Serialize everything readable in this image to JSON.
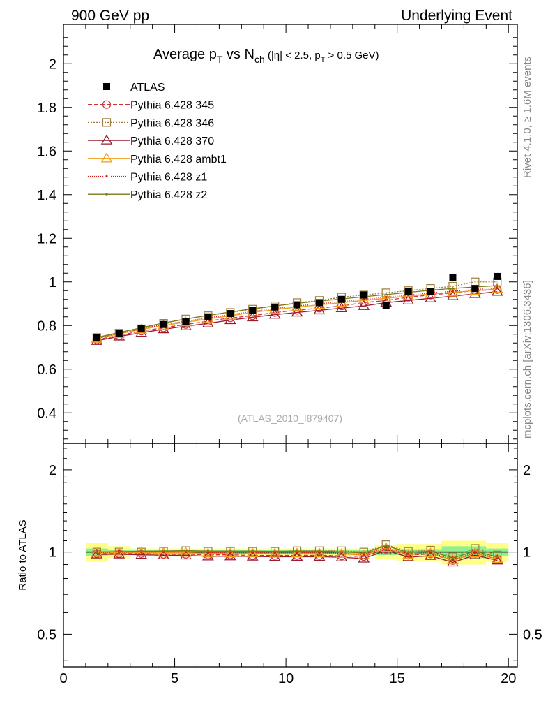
{
  "header": {
    "left": "900 GeV pp",
    "right": "Underlying Event"
  },
  "side": {
    "top": "Rivet 4.1.0, ≥ 1.6M events",
    "bottom": "mcplots.cern.ch [arXiv:1306.3436]"
  },
  "watermark": "(ATLAS_2010_I879407)",
  "chart_data": {
    "type": "line",
    "title": {
      "main": "Average p",
      "main_sub": "T",
      "mid": " vs N",
      "mid_sub": "ch",
      "cut_a": " (|η| < 2.5, p",
      "cut_sub": "T",
      "cut_b": " > 0.5 GeV)"
    },
    "xlabel": "",
    "ylabel": "",
    "ratio_ylabel": "Ratio to ATLAS",
    "xlim": [
      0,
      20.4
    ],
    "ylim": [
      0.26,
      2.18
    ],
    "ratio_ylim": [
      0.38,
      2.5
    ],
    "x_ticks": [
      0,
      5,
      10,
      15,
      20
    ],
    "x_tick_labels": [
      "0",
      "5",
      "10",
      "15",
      "20"
    ],
    "y_ticks": [
      0.4,
      0.6,
      0.8,
      1.0,
      1.2,
      1.4,
      1.6,
      1.8,
      2.0
    ],
    "y_tick_labels": [
      "0.4",
      "0.6",
      "0.8",
      "1",
      "1.2",
      "1.4",
      "1.6",
      "1.8",
      "2"
    ],
    "ratio_ticks": [
      0.5,
      1,
      2
    ],
    "ratio_tick_labels": [
      "0.5",
      "1",
      "2"
    ],
    "x": [
      1.5,
      2.5,
      3.5,
      4.5,
      5.5,
      6.5,
      7.5,
      8.5,
      9.5,
      10.5,
      11.5,
      12.5,
      13.5,
      14.5,
      15.5,
      16.5,
      17.5,
      18.5,
      19.5
    ],
    "data": {
      "name": "ATLAS",
      "values": [
        0.745,
        0.765,
        0.785,
        0.805,
        0.82,
        0.84,
        0.855,
        0.87,
        0.885,
        0.895,
        0.905,
        0.92,
        0.94,
        0.893,
        0.955,
        0.955,
        1.02,
        0.97,
        1.025
      ],
      "band_inner": [
        0.03,
        0.02,
        0.015,
        0.015,
        0.015,
        0.015,
        0.015,
        0.015,
        0.015,
        0.015,
        0.015,
        0.015,
        0.015,
        0.025,
        0.025,
        0.025,
        0.05,
        0.05,
        0.03
      ],
      "band_outer": [
        0.08,
        0.05,
        0.03,
        0.03,
        0.03,
        0.03,
        0.03,
        0.03,
        0.03,
        0.03,
        0.03,
        0.03,
        0.03,
        0.06,
        0.07,
        0.07,
        0.1,
        0.1,
        0.08
      ]
    },
    "series": [
      {
        "name": "Pythia 6.428 345",
        "color": "#d0303a",
        "dash": "6,3",
        "marker": "circle",
        "values": [
          0.735,
          0.755,
          0.775,
          0.79,
          0.805,
          0.82,
          0.835,
          0.845,
          0.86,
          0.87,
          0.88,
          0.89,
          0.905,
          0.915,
          0.93,
          0.94,
          0.95,
          0.96,
          0.965
        ]
      },
      {
        "name": "Pythia 6.428 346",
        "color": "#a07c3c",
        "dash": "2,2",
        "marker": "square",
        "values": [
          0.745,
          0.765,
          0.785,
          0.81,
          0.83,
          0.845,
          0.86,
          0.875,
          0.89,
          0.905,
          0.915,
          0.93,
          0.94,
          0.95,
          0.96,
          0.97,
          0.98,
          1.0,
          1.0
        ]
      },
      {
        "name": "Pythia 6.428 370",
        "color": "#9a1a2e",
        "dash": "",
        "marker": "triangle",
        "values": [
          0.73,
          0.75,
          0.767,
          0.783,
          0.797,
          0.81,
          0.825,
          0.838,
          0.85,
          0.86,
          0.87,
          0.88,
          0.89,
          0.905,
          0.915,
          0.925,
          0.935,
          0.945,
          0.955
        ]
      },
      {
        "name": "Pythia 6.428 ambt1",
        "color": "#f59b1a",
        "dash": "",
        "marker": "triangle",
        "values": [
          0.74,
          0.762,
          0.782,
          0.8,
          0.815,
          0.83,
          0.845,
          0.86,
          0.873,
          0.885,
          0.895,
          0.905,
          0.915,
          0.925,
          0.935,
          0.945,
          0.952,
          0.96,
          0.968
        ]
      },
      {
        "name": "Pythia 6.428 z1",
        "color": "#d01c12",
        "dash": "1,2",
        "marker": "dot",
        "values": [
          0.742,
          0.764,
          0.785,
          0.805,
          0.82,
          0.835,
          0.85,
          0.865,
          0.878,
          0.89,
          0.9,
          0.91,
          0.92,
          0.93,
          0.94,
          0.95,
          0.957,
          0.965,
          0.972
        ]
      },
      {
        "name": "Pythia 6.428 z2",
        "color": "#7b7a14",
        "dash": "",
        "marker": "dot",
        "values": [
          0.745,
          0.768,
          0.79,
          0.812,
          0.83,
          0.847,
          0.862,
          0.877,
          0.89,
          0.902,
          0.912,
          0.922,
          0.932,
          0.942,
          0.952,
          0.962,
          0.97,
          0.977,
          0.983
        ]
      }
    ],
    "legend_position": "top-left"
  }
}
